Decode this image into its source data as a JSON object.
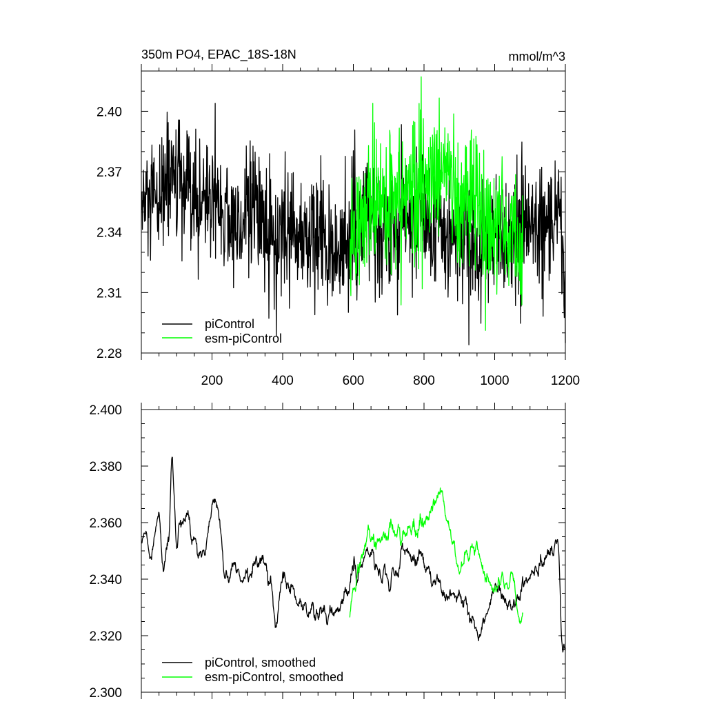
{
  "chart_data": [
    {
      "type": "line",
      "title": "350m PO4, EPAC_18S-18N",
      "units": "mmol/m^3",
      "xlim": [
        0,
        1200
      ],
      "ylim": [
        2.28,
        2.42
      ],
      "xticks": [
        200,
        400,
        600,
        800,
        1000,
        1200
      ],
      "xtick_labels": [
        "200",
        "400",
        "600",
        "800",
        "1000",
        "1200"
      ],
      "yticks": [
        2.28,
        2.31,
        2.34,
        2.37,
        2.4
      ],
      "ytick_labels": [
        "2.28",
        "2.31",
        "2.34",
        "2.37",
        "2.40"
      ],
      "legend_position": "bottom-left",
      "series": [
        {
          "name": "piControl",
          "color": "#000000",
          "x_start": 1,
          "x_step": 1,
          "n": 1200,
          "mean": 2.345,
          "noise_sd": 0.016,
          "anchors_x": [
            1,
            50,
            80,
            100,
            150,
            200,
            240,
            260,
            300,
            350,
            380,
            400,
            450,
            500,
            560,
            600,
            650,
            700,
            750,
            800,
            850,
            900,
            960,
            1000,
            1050,
            1100,
            1150,
            1180,
            1200
          ],
          "anchors_y": [
            2.352,
            2.352,
            2.372,
            2.362,
            2.352,
            2.36,
            2.35,
            2.34,
            2.352,
            2.345,
            2.328,
            2.338,
            2.34,
            2.335,
            2.33,
            2.342,
            2.345,
            2.342,
            2.348,
            2.345,
            2.338,
            2.338,
            2.328,
            2.34,
            2.336,
            2.342,
            2.348,
            2.345,
            2.312
          ]
        },
        {
          "name": "esm-piControl",
          "color": "#00ff00",
          "x_start": 590,
          "x_step": 1,
          "n": 491,
          "mean": 2.348,
          "noise_sd": 0.017,
          "anchors_x": [
            590,
            620,
            650,
            700,
            750,
            800,
            850,
            900,
            950,
            1000,
            1050,
            1080
          ],
          "anchors_y": [
            2.328,
            2.345,
            2.355,
            2.355,
            2.358,
            2.364,
            2.368,
            2.352,
            2.354,
            2.342,
            2.338,
            2.33
          ]
        }
      ]
    },
    {
      "type": "line",
      "xlim": [
        0,
        1200
      ],
      "ylim": [
        2.3,
        2.4
      ],
      "yticks": [
        2.3,
        2.32,
        2.34,
        2.36,
        2.38,
        2.4
      ],
      "ytick_labels": [
        "2.300",
        "2.320",
        "2.340",
        "2.360",
        "2.380",
        "2.400"
      ],
      "legend_position": "bottom-left",
      "series": [
        {
          "name": "piControl, smoothed",
          "color": "#000000",
          "x_start": 1,
          "x_step": 1,
          "n": 1200,
          "noise_sd": 0.005,
          "anchors_x": [
            1,
            10,
            30,
            50,
            60,
            80,
            85,
            100,
            120,
            150,
            180,
            200,
            220,
            240,
            260,
            300,
            350,
            370,
            380,
            400,
            450,
            500,
            560,
            600,
            650,
            700,
            750,
            800,
            850,
            900,
            960,
            1000,
            1050,
            1100,
            1150,
            1180,
            1190,
            1200
          ],
          "anchors_y": [
            2.352,
            2.356,
            2.344,
            2.366,
            2.342,
            2.356,
            2.388,
            2.35,
            2.362,
            2.352,
            2.348,
            2.368,
            2.364,
            2.338,
            2.345,
            2.34,
            2.348,
            2.334,
            2.322,
            2.34,
            2.332,
            2.326,
            2.33,
            2.342,
            2.348,
            2.34,
            2.35,
            2.345,
            2.335,
            2.334,
            2.32,
            2.338,
            2.33,
            2.34,
            2.35,
            2.352,
            2.312,
            2.32
          ]
        },
        {
          "name": "esm-piControl, smoothed",
          "color": "#00ff00",
          "x_start": 590,
          "x_step": 1,
          "n": 491,
          "noise_sd": 0.005,
          "anchors_x": [
            590,
            610,
            640,
            670,
            700,
            720,
            750,
            800,
            830,
            850,
            860,
            900,
            950,
            1000,
            1050,
            1070,
            1080
          ],
          "anchors_y": [
            2.328,
            2.34,
            2.356,
            2.352,
            2.358,
            2.356,
            2.356,
            2.36,
            2.366,
            2.372,
            2.36,
            2.344,
            2.35,
            2.336,
            2.34,
            2.326,
            2.328
          ]
        }
      ]
    }
  ]
}
